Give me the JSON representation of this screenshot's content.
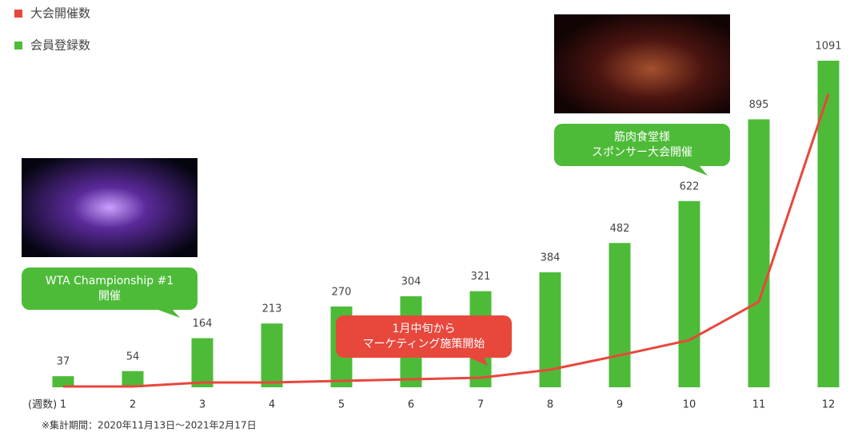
{
  "chart_data": {
    "type": "bar-line",
    "categories": [
      "1",
      "2",
      "3",
      "4",
      "5",
      "6",
      "7",
      "8",
      "9",
      "10",
      "11",
      "12"
    ],
    "x_unit_label": "(週数)",
    "series": [
      {
        "name": "大会開催数",
        "color": "#e8473c",
        "type": "line",
        "axis": "y2",
        "values": [
          1,
          1,
          6,
          6,
          8,
          10,
          12,
          22,
          40,
          59,
          107,
          367
        ]
      },
      {
        "name": "会員登録数",
        "color": "#4dbb38",
        "type": "bar",
        "values": [
          37,
          54,
          164,
          213,
          270,
          304,
          321,
          384,
          482,
          622,
          895,
          1091
        ]
      }
    ],
    "ylim": [
      0,
      1100
    ],
    "y2lim": [
      0,
      412
    ],
    "annotations": [
      {
        "lines": [
          "WTA Championship #1",
          "開催"
        ],
        "color": "#4dbb38"
      },
      {
        "lines": [
          "1月中旬から",
          "マーケティング施策開始"
        ],
        "color": "#e8473c"
      },
      {
        "lines": [
          "筋肉食堂様",
          "スポンサー大会開催"
        ],
        "color": "#4dbb38"
      }
    ],
    "footnote": "※集計期間：2020年11月13日～2021年2月17日"
  }
}
